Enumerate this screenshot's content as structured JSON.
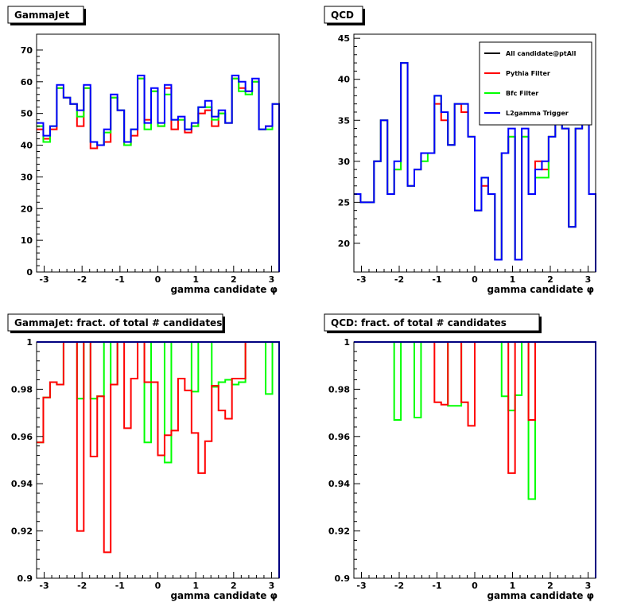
{
  "colors": {
    "all": "#000000",
    "pythia": "#ff0000",
    "bfc": "#00ff00",
    "l2": "#0000ff"
  },
  "chart_data": [
    {
      "type": "histogram-step",
      "title": "GammaJet",
      "xlabel": "gamma candidate  φ",
      "xlim": [
        -3.2,
        3.2
      ],
      "ylim": [
        0,
        75
      ],
      "xticks": [
        -3,
        -2,
        -1,
        0,
        1,
        2,
        3
      ],
      "yticks": [
        0,
        10,
        20,
        30,
        40,
        50,
        60,
        70
      ],
      "series": [
        {
          "color_key": "pythia",
          "values": [
            45,
            42,
            45,
            58,
            55,
            53,
            46,
            58,
            39,
            40,
            41,
            55,
            51,
            40,
            43,
            61,
            48,
            57,
            46,
            58,
            45,
            48,
            44,
            46,
            50,
            51,
            46,
            50,
            47,
            61,
            58,
            57,
            60,
            45,
            46,
            53
          ]
        },
        {
          "color_key": "bfc",
          "values": [
            46,
            41,
            46,
            58,
            55,
            53,
            49,
            58,
            41,
            40,
            44,
            55,
            51,
            40,
            45,
            61,
            45,
            57,
            46,
            56,
            48,
            48,
            45,
            46,
            52,
            52,
            48,
            50,
            47,
            61,
            57,
            56,
            60,
            45,
            45,
            53
          ]
        },
        {
          "color_key": "l2",
          "values": [
            47,
            43,
            46,
            59,
            55,
            53,
            51,
            59,
            41,
            40,
            45,
            56,
            51,
            41,
            45,
            62,
            47,
            58,
            47,
            59,
            48,
            49,
            45,
            47,
            52,
            54,
            49,
            51,
            47,
            62,
            60,
            57,
            61,
            45,
            46,
            53
          ]
        }
      ]
    },
    {
      "type": "histogram-step",
      "title": "QCD",
      "xlabel": "gamma candidate  φ",
      "xlim": [
        -3.2,
        3.2
      ],
      "ylim": [
        16.5,
        45.5
      ],
      "xticks": [
        -3,
        -2,
        -1,
        0,
        1,
        2,
        3
      ],
      "yticks": [
        20,
        25,
        30,
        35,
        40,
        45
      ],
      "legend": {
        "position": "top-right",
        "entries": [
          {
            "label": "All candidate@ptAll",
            "color_key": "all"
          },
          {
            "label": "Pythia Filter",
            "color_key": "pythia"
          },
          {
            "label": "Bfc Filter",
            "color_key": "bfc"
          },
          {
            "label": "L2gamma Trigger",
            "color_key": "l2"
          }
        ]
      },
      "series": [
        {
          "color_key": "pythia",
          "values": [
            26,
            25,
            25,
            30,
            35,
            26,
            29,
            42,
            27,
            29,
            31,
            31,
            37,
            35,
            32,
            37,
            36,
            33,
            24,
            27,
            26,
            18,
            31,
            33,
            18,
            33,
            26,
            30,
            29,
            33,
            35,
            34,
            22,
            34,
            36,
            26
          ]
        },
        {
          "color_key": "bfc",
          "values": [
            26,
            25,
            25,
            30,
            35,
            26,
            29,
            42,
            27,
            29,
            30,
            31,
            38,
            36,
            32,
            37,
            37,
            33,
            24,
            28,
            26,
            18,
            31,
            33,
            18,
            33,
            26,
            28,
            28,
            33,
            35,
            34,
            22,
            34,
            36,
            26
          ]
        },
        {
          "color_key": "l2",
          "values": [
            26,
            25,
            25,
            30,
            35,
            26,
            30,
            42,
            27,
            29,
            31,
            31,
            38,
            36,
            32,
            37,
            37,
            33,
            24,
            28,
            26,
            18,
            31,
            34,
            18,
            34,
            26,
            29,
            30,
            33,
            35,
            34,
            22,
            34,
            36,
            26
          ]
        }
      ]
    },
    {
      "type": "histogram-step",
      "title": "GammaJet: fract. of total # candidates",
      "xlabel": "gamma candidate  φ",
      "xlim": [
        -3.2,
        3.2
      ],
      "ylim": [
        0.9,
        1.0
      ],
      "xticks": [
        -3,
        -2,
        -1,
        0,
        1,
        2,
        3
      ],
      "yticks": [
        0.9,
        0.92,
        0.94,
        0.96,
        0.98,
        1.0
      ],
      "ytick_labels": [
        "0.9",
        "0.92",
        "0.94",
        "0.96",
        "0.98",
        "1"
      ],
      "series": [
        {
          "color_key": "bfc",
          "values": [
            0.9575,
            0.9765,
            0.983,
            0.982,
            1,
            1,
            0.976,
            1,
            0.976,
            0.977,
            1,
            0.982,
            1,
            1,
            1,
            1,
            0.9575,
            1,
            1,
            0.949,
            1,
            1,
            1,
            0.979,
            1,
            1,
            0.981,
            0.983,
            0.984,
            0.982,
            0.983,
            1,
            1,
            1,
            0.978,
            1
          ]
        },
        {
          "color_key": "pythia",
          "values": [
            0.9575,
            0.9765,
            0.983,
            0.982,
            1,
            1,
            0.92,
            1,
            0.9515,
            0.977,
            0.911,
            0.982,
            1,
            0.9635,
            0.9845,
            1,
            0.983,
            0.983,
            0.952,
            0.9605,
            0.9625,
            0.9845,
            0.9795,
            0.9615,
            0.9445,
            0.958,
            0.9815,
            0.971,
            0.9675,
            0.9845,
            0.9845,
            1,
            1,
            1,
            1,
            1
          ]
        },
        {
          "color_key": "l2",
          "values": [
            1,
            1,
            1,
            1,
            1,
            1,
            1,
            1,
            1,
            1,
            1,
            1,
            1,
            1,
            1,
            1,
            1,
            1,
            1,
            1,
            1,
            1,
            1,
            1,
            1,
            1,
            1,
            1,
            1,
            1,
            1,
            1,
            1,
            1,
            1,
            1
          ]
        }
      ]
    },
    {
      "type": "histogram-step",
      "title": "QCD: fract. of total # candidates",
      "xlabel": "gamma candidate  φ",
      "xlim": [
        -3.2,
        3.2
      ],
      "ylim": [
        0.9,
        1.0
      ],
      "xticks": [
        -3,
        -2,
        -1,
        0,
        1,
        2,
        3
      ],
      "yticks": [
        0.9,
        0.92,
        0.94,
        0.96,
        0.98,
        1.0
      ],
      "ytick_labels": [
        "0.9",
        "0.92",
        "0.94",
        "0.96",
        "0.98",
        "1"
      ],
      "series": [
        {
          "color_key": "bfc",
          "values": [
            1,
            1,
            1,
            1,
            1,
            1,
            0.967,
            1,
            1,
            0.968,
            1,
            1,
            1,
            1,
            0.973,
            0.973,
            1,
            1,
            1,
            1,
            1,
            1,
            0.977,
            0.971,
            0.9775,
            1,
            0.9335,
            1,
            1,
            1,
            1,
            1,
            1,
            1,
            1,
            1
          ]
        },
        {
          "color_key": "pythia",
          "values": [
            1,
            1,
            1,
            1,
            1,
            1,
            1,
            1,
            1,
            1,
            1,
            1,
            0.9745,
            0.9735,
            1,
            1,
            0.9745,
            0.9645,
            1,
            1,
            1,
            1,
            1,
            0.9445,
            1,
            1,
            0.967,
            1,
            1,
            1,
            1,
            1,
            1,
            1,
            1,
            1
          ]
        },
        {
          "color_key": "l2",
          "values": [
            1,
            1,
            1,
            1,
            1,
            1,
            1,
            1,
            1,
            1,
            1,
            1,
            1,
            1,
            1,
            1,
            1,
            1,
            1,
            1,
            1,
            1,
            1,
            1,
            1,
            1,
            1,
            1,
            1,
            1,
            1,
            1,
            1,
            1,
            1,
            1
          ]
        }
      ]
    }
  ]
}
